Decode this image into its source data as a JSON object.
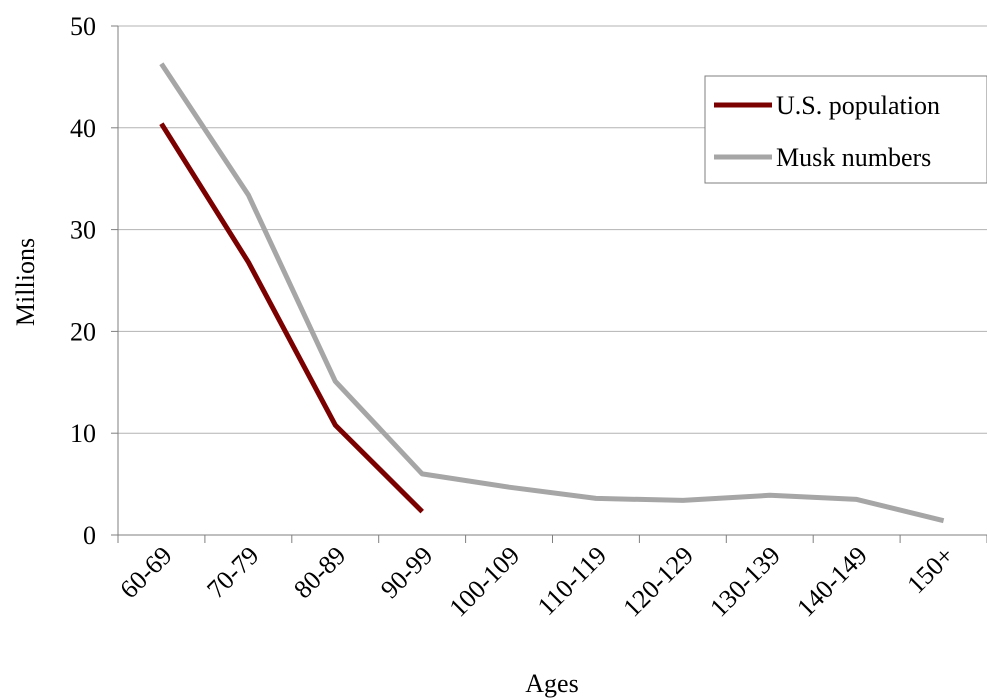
{
  "chart_data": {
    "type": "line",
    "xlabel": "Ages",
    "ylabel": "Millions",
    "categories": [
      "60-69",
      "70-79",
      "80-89",
      "90-99",
      "100-109",
      "110-119",
      "120-129",
      "130-139",
      "140-149",
      "150+"
    ],
    "ylim": [
      0,
      50
    ],
    "yticks": [
      0,
      10,
      20,
      30,
      40,
      50
    ],
    "grid": true,
    "legend_position": "top-right",
    "series": [
      {
        "name": "U.S. population",
        "color": "#7b0000",
        "values": [
          40.4,
          26.8,
          10.8,
          2.3,
          null,
          null,
          null,
          null,
          null,
          null
        ]
      },
      {
        "name": "Musk numbers",
        "color": "#a6a6a6",
        "values": [
          46.3,
          33.4,
          15.1,
          6.0,
          4.7,
          3.6,
          3.4,
          3.9,
          3.5,
          1.4
        ]
      }
    ]
  }
}
